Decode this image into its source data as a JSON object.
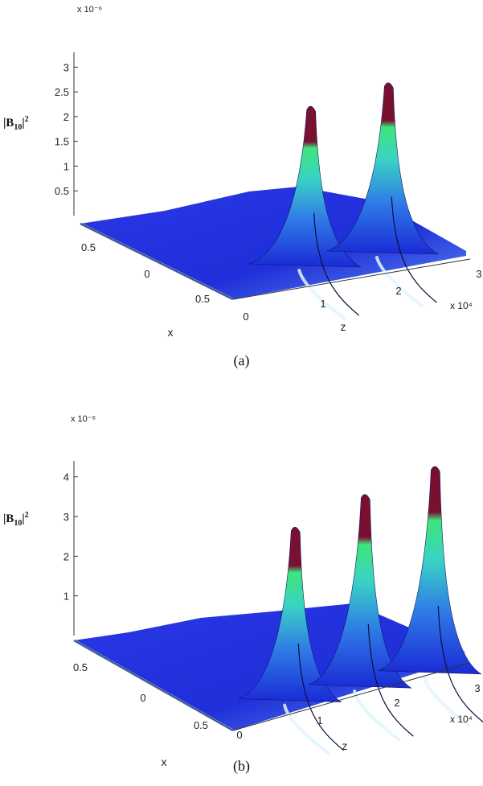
{
  "chart_data": [
    {
      "panel": "(a)",
      "type": "surface",
      "zlabel_base": "|B",
      "zlabel_sub": "10",
      "zlabel_tail": "|",
      "zlabel_sup": "2",
      "z_exponent_label": "x 10⁻⁶",
      "z_ticks": [
        "3",
        "2.5",
        "2",
        "1.5",
        "1",
        "0.5"
      ],
      "z_tick_values": [
        3,
        2.5,
        2,
        1.5,
        1,
        0.5
      ],
      "xlabel": "x",
      "x_ticks": [
        "0.5",
        "0",
        "0.5"
      ],
      "zaxis_label": "z",
      "z_axis_ticks": [
        "0",
        "1",
        "2",
        "3"
      ],
      "z_axis_exponent_label": "x 10⁴",
      "peaks": [
        {
          "z": 1.0,
          "value": 2.9
        },
        {
          "z": 2.0,
          "value": 3.1
        }
      ],
      "colors": [
        "#1a2ad6",
        "#2f7be6",
        "#39d3c4",
        "#3fe57a",
        "#7a1030"
      ]
    },
    {
      "panel": "(b)",
      "type": "surface",
      "zlabel_base": "|B",
      "zlabel_sub": "10",
      "zlabel_tail": "|",
      "zlabel_sup": "2",
      "z_exponent_label": "x 10⁻⁶",
      "z_ticks": [
        "4",
        "3",
        "2",
        "1"
      ],
      "z_tick_values": [
        4,
        3,
        2,
        1
      ],
      "xlabel": "x",
      "x_ticks": [
        "0.5",
        "0",
        "0.5"
      ],
      "zaxis_label": "z",
      "z_axis_ticks": [
        "0",
        "1",
        "2",
        "3"
      ],
      "z_axis_exponent_label": "x 10⁴",
      "peaks": [
        {
          "z": 0.8,
          "value": 3.6
        },
        {
          "z": 1.7,
          "value": 4.0
        },
        {
          "z": 2.6,
          "value": 4.3
        }
      ],
      "colors": [
        "#1a2ad6",
        "#2f7be6",
        "#39d3c4",
        "#3fe57a",
        "#7a1030"
      ]
    }
  ],
  "captions": [
    "(a)",
    "(b)"
  ]
}
